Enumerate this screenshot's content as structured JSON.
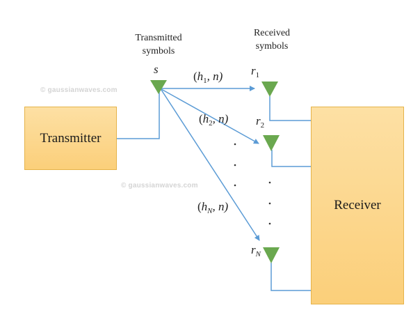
{
  "blocks": {
    "transmitter": "Transmitter",
    "receiver": "Receiver"
  },
  "headers": {
    "transmitted": [
      "Transmitted",
      "symbols"
    ],
    "received": [
      "Received",
      "symbols"
    ]
  },
  "watermark": "© gaussianwaves.com",
  "symbols": {
    "s": "s",
    "r1": {
      "base": "r",
      "sub": "1"
    },
    "r2": {
      "base": "r",
      "sub": "2"
    },
    "rN": {
      "base": "r",
      "sub": "N"
    }
  },
  "channels": [
    {
      "open": "(",
      "h": "h",
      "sub": "1",
      "rest": ", n)"
    },
    {
      "open": "(",
      "h": "h",
      "sub": "2",
      "rest": ", n)"
    },
    {
      "open": "(",
      "h": "h",
      "sub": "N",
      "rest": ", n)"
    }
  ],
  "colors": {
    "antenna": "#6aa84f",
    "link": "#5b9bd5",
    "block_fill": "#fbd17e",
    "block_border": "#e5b34a"
  }
}
